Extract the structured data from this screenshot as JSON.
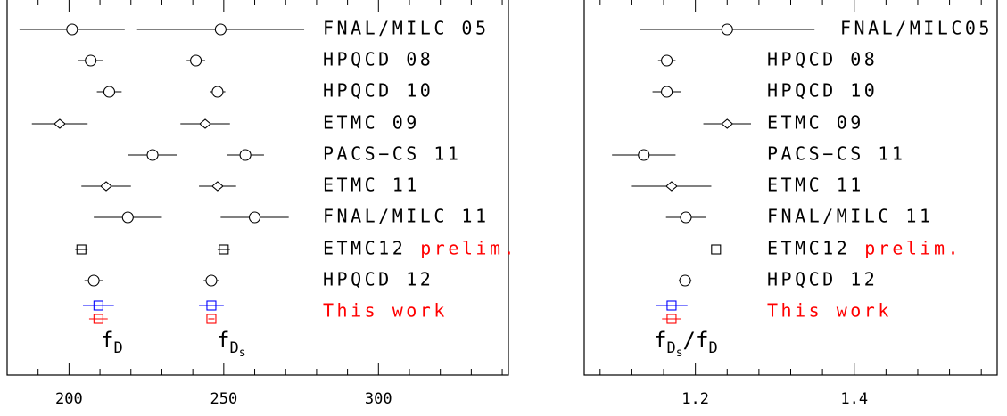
{
  "chart_data": [
    {
      "type": "errorbar",
      "categories": [
        "FNAL/MILC 05",
        "HPQCD 08",
        "HPQCD 10",
        "ETMC 09",
        "PACS−CS 11",
        "ETMC 11",
        "FNAL/MILC 11",
        "ETMC12",
        "HPQCD 12",
        "This work",
        null
      ],
      "label_colors": [
        "#000000",
        "#000000",
        "#000000",
        "#000000",
        "#000000",
        "#000000",
        "#000000",
        "#000000",
        "#000000",
        "#ff0000",
        "#000000"
      ],
      "annotations": [
        {
          "text": "prelim.",
          "row": 7,
          "color": "#ff0000"
        }
      ],
      "markers": [
        "circle",
        "circle",
        "circle",
        "diamond",
        "circle",
        "diamond",
        "circle",
        "square",
        "circle",
        "square",
        "square"
      ],
      "colors": [
        "#000000",
        "#000000",
        "#000000",
        "#000000",
        "#000000",
        "#000000",
        "#000000",
        "#000000",
        "#000000",
        "#0000ff",
        "#ff0000"
      ],
      "series": [
        {
          "name": [
            {
              "text": "f"
            },
            {
              "sub": "D"
            }
          ],
          "values": [
            201,
            207,
            213,
            197,
            227,
            212,
            219,
            204,
            208,
            209.5,
            209.5
          ],
          "errors": [
            17,
            4,
            4,
            9,
            8,
            8,
            11,
            2,
            3,
            5,
            3
          ]
        },
        {
          "name": [
            {
              "text": "f"
            },
            {
              "sub": "D"
            },
            {
              "subsub": "s"
            }
          ],
          "values": [
            249,
            241,
            248,
            244,
            257,
            248,
            260,
            250,
            246,
            246,
            246
          ],
          "errors": [
            27,
            3,
            2.5,
            8,
            6,
            6,
            11,
            2,
            2.5,
            4,
            1
          ]
        }
      ],
      "xlim": [
        180,
        342
      ],
      "xticks": [
        200,
        250,
        300
      ],
      "xminorticks": [
        190,
        210,
        220,
        230,
        240,
        260,
        270,
        280,
        290,
        310,
        320,
        330,
        340
      ]
    },
    {
      "type": "errorbar",
      "categories": [
        "FNAL/MILC05",
        "HPQCD 08",
        "HPQCD 10",
        "ETMC 09",
        "PACS−CS 11",
        "ETMC 11",
        "FNAL/MILC 11",
        "ETMC12",
        "HPQCD 12",
        "This work",
        null
      ],
      "label_colors": [
        "#000000",
        "#000000",
        "#000000",
        "#000000",
        "#000000",
        "#000000",
        "#000000",
        "#000000",
        "#000000",
        "#ff0000",
        "#000000"
      ],
      "annotations": [
        {
          "text": "prelim.",
          "row": 7,
          "color": "#ff0000"
        }
      ],
      "markers": [
        "circle",
        "circle",
        "circle",
        "diamond",
        "circle",
        "diamond",
        "circle",
        "square",
        "circle",
        "square",
        "square"
      ],
      "colors": [
        "#000000",
        "#000000",
        "#000000",
        "#000000",
        "#000000",
        "#000000",
        "#000000",
        "#000000",
        "#000000",
        "#0000ff",
        "#ff0000"
      ],
      "series": [
        {
          "name": [
            {
              "text": "f"
            },
            {
              "sub": "D"
            },
            {
              "subsub": "s"
            },
            {
              "text": "/f"
            },
            {
              "sub": "D"
            }
          ],
          "values": [
            1.24,
            1.164,
            1.164,
            1.24,
            1.135,
            1.17,
            1.188,
            1.226,
            1.187,
            1.17,
            1.17
          ],
          "errors": [
            0.11,
            0.011,
            0.018,
            0.03,
            0.04,
            0.05,
            0.025,
            0,
            0.008,
            0.02,
            0.012
          ]
        }
      ],
      "xlim": [
        1.06,
        1.58
      ],
      "xticks": [
        1.2,
        1.4
      ],
      "xminorticks": [
        1.08,
        1.12,
        1.16,
        1.24,
        1.28,
        1.32,
        1.36,
        1.44,
        1.48,
        1.52,
        1.56
      ]
    }
  ]
}
